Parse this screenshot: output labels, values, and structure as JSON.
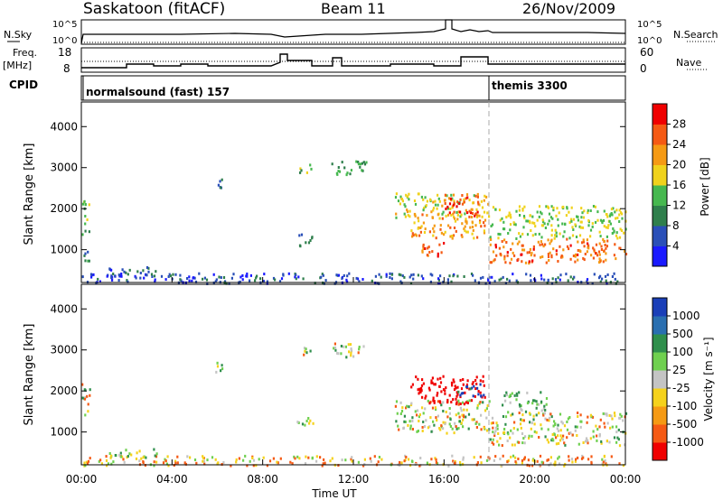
{
  "header": {
    "station": "Saskatoon (fitACF)",
    "beam": "Beam 11",
    "date": "26/Nov/2009"
  },
  "strips": {
    "nsky": {
      "label": "N.Sky",
      "ticks": [
        "10^5",
        "10^0"
      ],
      "right_label": "N.Search",
      "right_ticks": [
        "10^5",
        "10^0"
      ]
    },
    "freq": {
      "label": "Freq.",
      "unit": "[MHz]",
      "ticks": [
        "18",
        "8"
      ],
      "right_label": "Nave",
      "right_ticks": [
        "60",
        "0"
      ]
    },
    "cpid": {
      "label": "CPID",
      "segments": [
        {
          "start": "00:00",
          "text": "normalsound (fast) 157"
        },
        {
          "start": "18:00",
          "text": "themis 3300"
        }
      ]
    }
  },
  "colorbars": {
    "power": {
      "label": "Power [dB]",
      "ticks": [
        "4",
        "8",
        "12",
        "16",
        "20",
        "24",
        "28"
      ],
      "colors": [
        "#1a1aff",
        "#2a4fb8",
        "#2f7f4c",
        "#46b84f",
        "#f0d21c",
        "#f59a14",
        "#f55a14",
        "#f00000"
      ]
    },
    "velocity": {
      "label": "Velocity [m s⁻¹]",
      "ticks": [
        "1000",
        "500",
        "100",
        "25",
        "-25",
        "-100",
        "-500",
        "-1000"
      ],
      "colors": [
        "#1a3fb8",
        "#2a6fb0",
        "#2f8f4c",
        "#6fd04f",
        "#c4c4c4",
        "#f5d21c",
        "#f59a14",
        "#f55a14",
        "#f00000"
      ]
    }
  },
  "chart_data": [
    {
      "type": "heatmap",
      "name": "power",
      "ylabel": "Slant Range [km]",
      "yticks": [
        1000,
        2000,
        3000,
        4000
      ],
      "ylim": [
        200,
        4600
      ],
      "xlim": [
        "00:00",
        "24:00"
      ],
      "colorbar_label": "Power [dB]",
      "clim": [
        0,
        30
      ],
      "regions": [
        {
          "t0": 0.0,
          "t1": 0.35,
          "r0": 1400,
          "r1": 2300,
          "value": 14
        },
        {
          "t0": 0.0,
          "t1": 0.35,
          "r0": 700,
          "r1": 1000,
          "value": 10
        },
        {
          "t0": 1.2,
          "t1": 3.3,
          "r0": 380,
          "r1": 620,
          "value": 7
        },
        {
          "t0": 0.0,
          "t1": 24.0,
          "r0": 200,
          "r1": 450,
          "value": 6
        },
        {
          "t0": 5.8,
          "t1": 6.2,
          "r0": 2450,
          "r1": 2750,
          "value": 8
        },
        {
          "t0": 9.6,
          "t1": 10.2,
          "r0": 2850,
          "r1": 3100,
          "value": 14
        },
        {
          "t0": 11.0,
          "t1": 12.6,
          "r0": 2850,
          "r1": 3200,
          "value": 12
        },
        {
          "t0": 9.5,
          "t1": 10.2,
          "r0": 1100,
          "r1": 1400,
          "value": 9
        },
        {
          "t0": 13.8,
          "t1": 18.0,
          "r0": 1800,
          "r1": 2400,
          "value": 18
        },
        {
          "t0": 14.5,
          "t1": 17.8,
          "r0": 1300,
          "r1": 1900,
          "value": 22
        },
        {
          "t0": 15.0,
          "t1": 16.2,
          "r0": 850,
          "r1": 1200,
          "value": 26
        },
        {
          "t0": 16.0,
          "t1": 17.5,
          "r0": 1800,
          "r1": 2400,
          "value": 27
        },
        {
          "t0": 18.0,
          "t1": 24.0,
          "r0": 1300,
          "r1": 2100,
          "value": 16
        },
        {
          "t0": 18.0,
          "t1": 24.0,
          "r0": 700,
          "r1": 1300,
          "value": 25
        }
      ]
    },
    {
      "type": "heatmap",
      "name": "velocity",
      "ylabel": "Slant Range [km]",
      "xlabel": "Time UT",
      "yticks": [
        1000,
        2000,
        3000,
        4000
      ],
      "ylim": [
        200,
        4600
      ],
      "xticks": [
        "00:00",
        "04:00",
        "08:00",
        "12:00",
        "16:00",
        "20:00",
        "00:00"
      ],
      "xlim": [
        "00:00",
        "24:00"
      ],
      "colorbar_label": "Velocity [m s⁻¹]",
      "clim": [
        -1000,
        1000
      ],
      "regions": [
        {
          "t0": 0.0,
          "t1": 0.35,
          "r0": 1400,
          "r1": 2300,
          "value": 0
        },
        {
          "t0": 0.0,
          "t1": 24.0,
          "r0": 200,
          "r1": 450,
          "value": -80
        },
        {
          "t0": 1.2,
          "t1": 3.3,
          "r0": 380,
          "r1": 620,
          "value": 60
        },
        {
          "t0": 5.8,
          "t1": 6.2,
          "r0": 2450,
          "r1": 2750,
          "value": 0
        },
        {
          "t0": 9.6,
          "t1": 10.2,
          "r0": 2850,
          "r1": 3100,
          "value": 0
        },
        {
          "t0": 11.0,
          "t1": 12.6,
          "r0": 2850,
          "r1": 3200,
          "value": 0
        },
        {
          "t0": 9.5,
          "t1": 10.2,
          "r0": 1100,
          "r1": 1400,
          "value": 0
        },
        {
          "t0": 13.8,
          "t1": 18.0,
          "r0": 1000,
          "r1": 1800,
          "value": 0
        },
        {
          "t0": 14.5,
          "t1": 17.8,
          "r0": 1700,
          "r1": 2400,
          "value": -700
        },
        {
          "t0": 16.5,
          "t1": 17.8,
          "r0": 1900,
          "r1": 2200,
          "value": 600
        },
        {
          "t0": 18.0,
          "t1": 24.0,
          "r0": 700,
          "r1": 1500,
          "value": 0
        },
        {
          "t0": 18.5,
          "t1": 20.5,
          "r0": 1500,
          "r1": 2000,
          "value": 120
        }
      ]
    }
  ]
}
